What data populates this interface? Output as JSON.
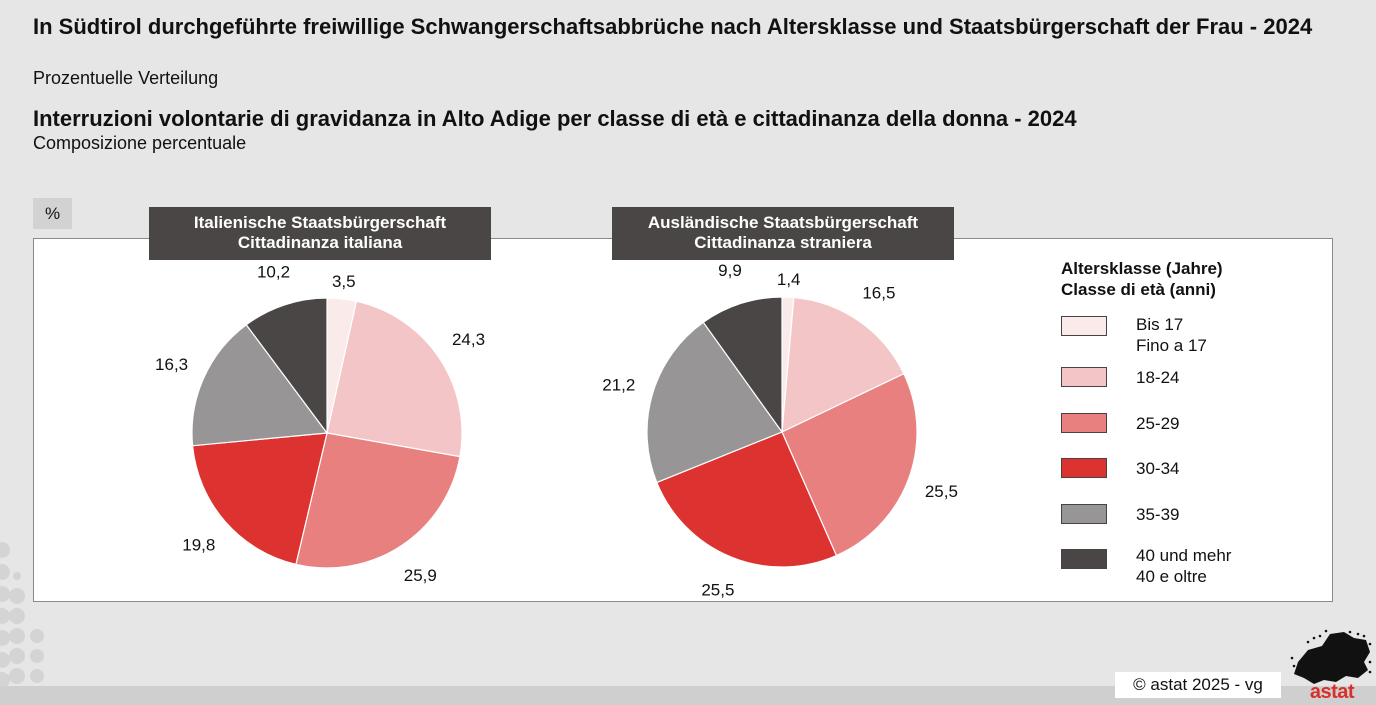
{
  "title_de": "In Südtirol durchgeführte freiwillige Schwangerschaftsabbrüche nach Altersklasse und Staatsbürgerschaft der Frau - 2024",
  "subtitle_de": "Prozentuelle Verteilung",
  "title_it": "Interruzioni volontarie di gravidanza in Alto Adige per classe di età e cittadinanza della donna - 2024",
  "subtitle_it": "Composizione percentuale",
  "unit_label": "%",
  "legend": {
    "title_de": "Altersklasse (Jahre)",
    "title_it": "Classe di età (anni)",
    "items": [
      {
        "label_de": "Bis 17",
        "label_it": "Fino a 17",
        "color": "#fbeaea"
      },
      {
        "label_de": "18-24",
        "label_it": "",
        "color": "#f3c5c7"
      },
      {
        "label_de": "25-29",
        "label_it": "",
        "color": "#e98080"
      },
      {
        "label_de": "30-34",
        "label_it": "",
        "color": "#dc3331"
      },
      {
        "label_de": "35-39",
        "label_it": "",
        "color": "#979595"
      },
      {
        "label_de": "40 und mehr",
        "label_it": "40 e oltre",
        "color": "#4a4646"
      }
    ]
  },
  "chart_data": [
    {
      "type": "pie",
      "title_de": "Italienische Staatsbürgerschaft",
      "title_it": "Cittadinanza italiana",
      "categories": [
        "Bis 17",
        "18-24",
        "25-29",
        "30-34",
        "35-39",
        "40 und mehr"
      ],
      "values": [
        3.5,
        24.3,
        25.9,
        19.8,
        16.3,
        10.2
      ],
      "value_labels": [
        "3,5",
        "24,3",
        "25,9",
        "19,8",
        "16,3",
        "10,2"
      ]
    },
    {
      "type": "pie",
      "title_de": "Ausländische Staatsbürgerschaft",
      "title_it": "Cittadinanza straniera",
      "categories": [
        "Bis 17",
        "18-24",
        "25-29",
        "30-34",
        "35-39",
        "40 und mehr"
      ],
      "values": [
        1.4,
        16.5,
        25.5,
        25.5,
        21.2,
        9.9
      ],
      "value_labels": [
        "1,4",
        "16,5",
        "25,5",
        "25,5",
        "21,2",
        "9,9"
      ]
    }
  ],
  "footer": {
    "copyright": "© astat 2025 - vg",
    "logo_text": "astat"
  }
}
